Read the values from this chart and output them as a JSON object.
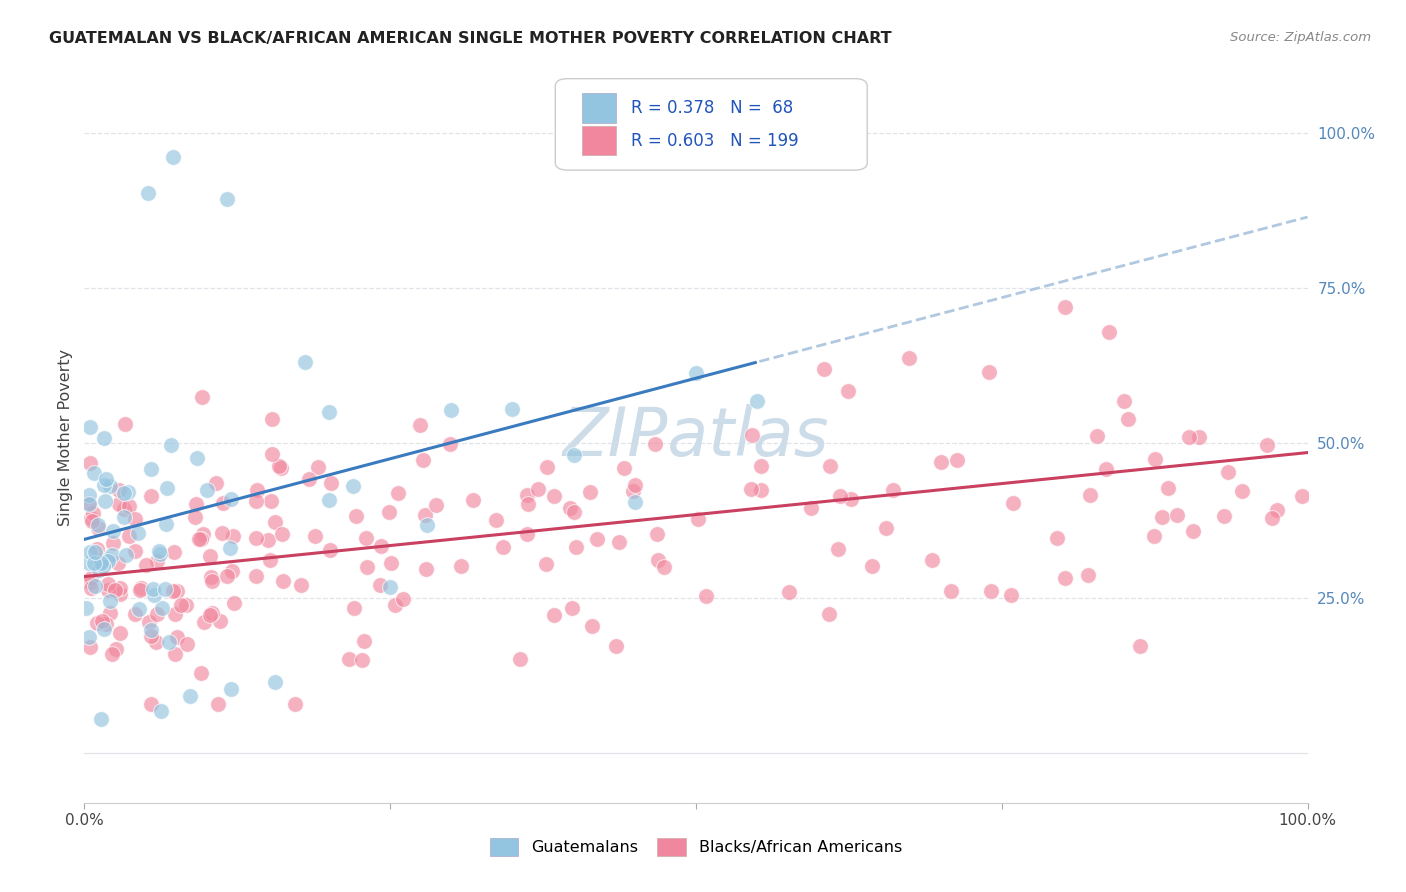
{
  "title": "GUATEMALAN VS BLACK/AFRICAN AMERICAN SINGLE MOTHER POVERTY CORRELATION CHART",
  "source": "Source: ZipAtlas.com",
  "ylabel": "Single Mother Poverty",
  "ytick_labels": [
    "25.0%",
    "50.0%",
    "75.0%",
    "100.0%"
  ],
  "ytick_positions": [
    0.25,
    0.5,
    0.75,
    1.0
  ],
  "legend_label1": "Guatemalans",
  "legend_label2": "Blacks/African Americans",
  "R1": 0.378,
  "N1": 68,
  "R2": 0.603,
  "N2": 199,
  "color1": "#93c4e0",
  "color2": "#f1879e",
  "line1_color": "#3a7bbf",
  "line2_color": "#c94060",
  "line1_dash_color": "#b0c8e0",
  "watermark_color": "#ccdce8",
  "background_color": "#ffffff",
  "grid_color": "#e0e4ea",
  "title_color": "#222222",
  "source_color": "#888888",
  "ytick_color": "#5588bb",
  "xtick_color": "#444444",
  "ylabel_color": "#444444",
  "line1_intercept": 0.345,
  "line1_slope": 0.52,
  "line2_intercept": 0.285,
  "line2_slope": 0.2,
  "xlim": [
    0.0,
    1.0
  ],
  "ylim": [
    -0.08,
    1.1
  ]
}
